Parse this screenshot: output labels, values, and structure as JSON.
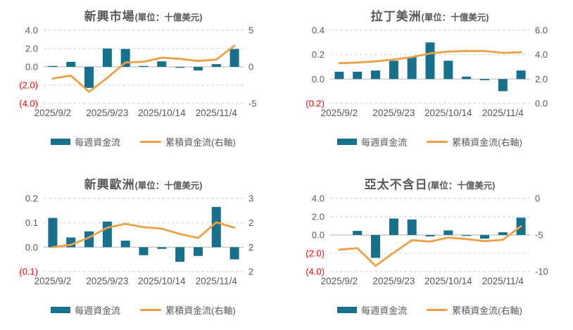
{
  "page": {
    "background": "#ffffff"
  },
  "colors": {
    "bar": "#17708C",
    "line": "#EDA044",
    "axis_text": "#595959",
    "negative_text": "#FF0000",
    "gridline": "#D9D9D9",
    "zero_line": "#BFBFBF",
    "title_text": "#595959"
  },
  "legend": {
    "bar_label": "每週資金流",
    "line_label": "累積資金流(右軸)"
  },
  "chart_data": [
    {
      "type": "bar+line",
      "title": "新興市場",
      "unit_label": "(單位：十億美元)",
      "grid": "dashed-horizontal",
      "legend_position": "bottom",
      "left_axis": {
        "min": -4,
        "max": 4,
        "ticks": [
          {
            "label": "4.0",
            "value": 4
          },
          {
            "label": "2.0",
            "value": 2
          },
          {
            "label": "0.0",
            "value": 0
          },
          {
            "label": "(2.0)",
            "value": -2
          },
          {
            "label": "(4.0)",
            "value": -4
          }
        ]
      },
      "right_axis": {
        "min": -5,
        "max": 5,
        "ticks": [
          {
            "label": "5",
            "value": 5
          },
          {
            "label": "0",
            "value": 0
          },
          {
            "label": "-5",
            "value": -5
          }
        ]
      },
      "x_tick_labels": [
        "2025/9/2",
        "2025/9/23",
        "2025/10/14",
        "2025/11/4"
      ],
      "x_tick_indices": [
        0,
        3,
        6,
        9
      ],
      "series": [
        {
          "name": "每週資金流",
          "type": "bar",
          "axis": "left",
          "values": [
            0.1,
            0.55,
            -2.3,
            2.0,
            1.95,
            0.1,
            0.6,
            -0.1,
            -0.4,
            0.3,
            1.95
          ]
        },
        {
          "name": "累積資金流(右軸)",
          "type": "line",
          "axis": "right",
          "values": [
            -1.6,
            -1.2,
            -3.4,
            -1.5,
            0.6,
            0.7,
            1.25,
            1.1,
            0.8,
            1.0,
            2.9
          ]
        }
      ]
    },
    {
      "type": "bar+line",
      "title": "拉丁美洲",
      "unit_label": "(單位：十億美元)",
      "grid": "dashed-horizontal",
      "legend_position": "bottom",
      "left_axis": {
        "min": -0.2,
        "max": 0.4,
        "ticks": [
          {
            "label": "0.4",
            "value": 0.4
          },
          {
            "label": "0.2",
            "value": 0.2
          },
          {
            "label": "0.0",
            "value": 0
          },
          {
            "label": "(0.2)",
            "value": -0.2
          }
        ]
      },
      "right_axis": {
        "min": 0,
        "max": 6,
        "ticks": [
          {
            "label": "6.0",
            "value": 6
          },
          {
            "label": "4.0",
            "value": 4
          },
          {
            "label": "2.0",
            "value": 2
          },
          {
            "label": "0.0",
            "value": 0
          }
        ]
      },
      "x_tick_labels": [
        "2025/9/2",
        "2025/9/23",
        "2025/10/14",
        "2025/11/4"
      ],
      "x_tick_indices": [
        0,
        3,
        6,
        9
      ],
      "series": [
        {
          "name": "每週資金流",
          "type": "bar",
          "axis": "left",
          "values": [
            0.06,
            0.06,
            0.07,
            0.15,
            0.18,
            0.3,
            0.15,
            0.02,
            -0.01,
            -0.1,
            0.07
          ]
        },
        {
          "name": "累積資金流(右軸)",
          "type": "line",
          "axis": "right",
          "values": [
            3.3,
            3.35,
            3.45,
            3.6,
            3.8,
            4.1,
            4.25,
            4.3,
            4.3,
            4.15,
            4.2
          ]
        }
      ]
    },
    {
      "type": "bar+line",
      "title": "新興歐洲",
      "unit_label": "(單位：十億美元)",
      "grid": "dashed-horizontal",
      "legend_position": "bottom",
      "left_axis": {
        "min": -0.1,
        "max": 0.2,
        "ticks": [
          {
            "label": "0.2",
            "value": 0.2
          },
          {
            "label": "0.1",
            "value": 0.1
          },
          {
            "label": "0.0",
            "value": 0
          },
          {
            "label": "(0.1)",
            "value": -0.1
          }
        ]
      },
      "right_axis": {
        "min": 1.5,
        "max": 3,
        "ticks": [
          {
            "label": "3",
            "value": 3
          },
          {
            "label": "2",
            "value": 2.5
          },
          {
            "label": "2",
            "value": 2
          },
          {
            "label": "2",
            "value": 1.5
          }
        ]
      },
      "x_tick_labels": [
        "2025/9/2",
        "2025/9/23",
        "2025/10/14",
        "2025/11/4"
      ],
      "x_tick_indices": [
        0,
        3,
        6,
        9
      ],
      "series": [
        {
          "name": "每週資金流",
          "type": "bar",
          "axis": "left",
          "values": [
            0.12,
            0.04,
            0.065,
            0.105,
            0.027,
            -0.033,
            -0.007,
            -0.06,
            -0.036,
            0.165,
            -0.05
          ]
        },
        {
          "name": "累積資金流(右軸)",
          "type": "line",
          "axis": "right",
          "values": [
            2.0,
            2.05,
            2.2,
            2.4,
            2.48,
            2.41,
            2.38,
            2.27,
            2.19,
            2.51,
            2.4
          ]
        }
      ]
    },
    {
      "type": "bar+line",
      "title": "亞太不含日",
      "unit_label": "(單位：十億美元)",
      "grid": "dashed-horizontal",
      "legend_position": "bottom",
      "left_axis": {
        "min": -4,
        "max": 4,
        "ticks": [
          {
            "label": "4.0",
            "value": 4
          },
          {
            "label": "2.0",
            "value": 2
          },
          {
            "label": "0.0",
            "value": 0
          },
          {
            "label": "(2.0)",
            "value": -2
          },
          {
            "label": "(4.0)",
            "value": -4
          }
        ]
      },
      "right_axis": {
        "min": -10,
        "max": 0,
        "ticks": [
          {
            "label": "0",
            "value": 0
          },
          {
            "label": "-5",
            "value": -5
          },
          {
            "label": "-10",
            "value": -10
          }
        ]
      },
      "x_tick_labels": [
        "2025/9/2",
        "2025/9/23",
        "2025/10/14",
        "2025/11/4"
      ],
      "x_tick_indices": [
        0,
        3,
        6,
        9
      ],
      "series": [
        {
          "name": "每週資金流",
          "type": "bar",
          "axis": "left",
          "values": [
            0,
            0.45,
            -2.5,
            1.8,
            1.7,
            -0.15,
            0.5,
            -0.1,
            -0.4,
            0.3,
            1.9
          ]
        },
        {
          "name": "累積資金流(右軸)",
          "type": "line",
          "axis": "right",
          "values": [
            -7.0,
            -6.8,
            -9.2,
            -7.4,
            -5.7,
            -5.9,
            -5.35,
            -5.55,
            -5.85,
            -5.65,
            -3.8
          ]
        }
      ]
    }
  ]
}
